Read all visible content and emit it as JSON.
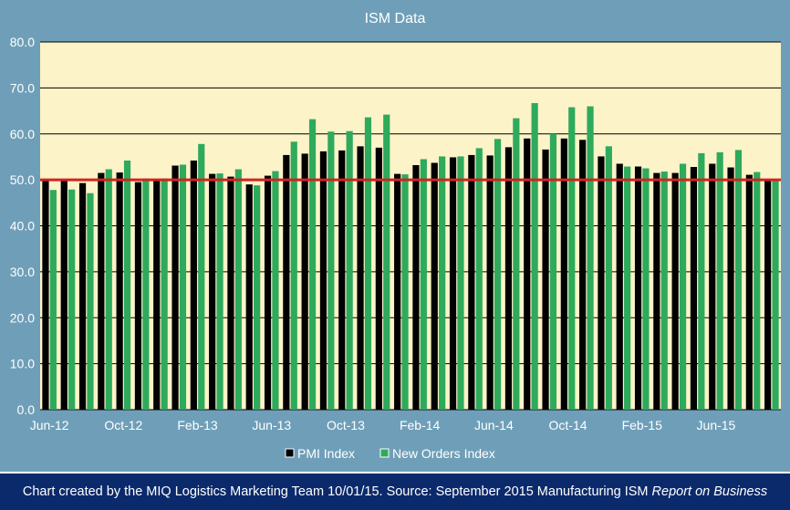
{
  "chart_data": {
    "type": "bar",
    "title": "ISM Data",
    "xlabel": "",
    "ylabel": "",
    "ylim": [
      0,
      80
    ],
    "yticks": [
      "0.0",
      "10.0",
      "20.0",
      "30.0",
      "40.0",
      "50.0",
      "60.0",
      "70.0",
      "80.0"
    ],
    "grid": true,
    "legend_position": "bottom",
    "categories": [
      "Jun-12",
      "Jul-12",
      "Aug-12",
      "Sep-12",
      "Oct-12",
      "Nov-12",
      "Dec-12",
      "Jan-13",
      "Feb-13",
      "Mar-13",
      "Apr-13",
      "May-13",
      "Jun-13",
      "Jul-13",
      "Aug-13",
      "Sep-13",
      "Oct-13",
      "Nov-13",
      "Dec-13",
      "Jan-14",
      "Feb-14",
      "Mar-14",
      "Apr-14",
      "May-14",
      "Jun-14",
      "Jul-14",
      "Aug-14",
      "Sep-14",
      "Oct-14",
      "Nov-14",
      "Dec-14",
      "Jan-15",
      "Feb-15",
      "Mar-15",
      "Apr-15",
      "May-15",
      "Jun-15",
      "Jul-15",
      "Aug-15",
      "Sep-15"
    ],
    "x_tick_labels": [
      {
        "index": 0,
        "label": "Jun-12"
      },
      {
        "index": 4,
        "label": "Oct-12"
      },
      {
        "index": 8,
        "label": "Feb-13"
      },
      {
        "index": 12,
        "label": "Jun-13"
      },
      {
        "index": 16,
        "label": "Oct-13"
      },
      {
        "index": 20,
        "label": "Feb-14"
      },
      {
        "index": 24,
        "label": "Jun-14"
      },
      {
        "index": 28,
        "label": "Oct-14"
      },
      {
        "index": 32,
        "label": "Feb-15"
      },
      {
        "index": 36,
        "label": "Jun-15"
      }
    ],
    "series": [
      {
        "name": "PMI Index",
        "color": "#000000",
        "values": [
          50.0,
          49.8,
          49.3,
          51.5,
          51.6,
          49.5,
          50.0,
          53.1,
          54.2,
          51.3,
          50.7,
          49.0,
          50.9,
          55.4,
          55.7,
          56.2,
          56.4,
          57.3,
          57.0,
          51.3,
          53.2,
          53.7,
          54.9,
          55.4,
          55.3,
          57.1,
          59.0,
          56.6,
          59.0,
          58.7,
          55.1,
          53.5,
          52.9,
          51.5,
          51.5,
          52.8,
          53.5,
          52.7,
          51.1,
          50.2
        ]
      },
      {
        "name": "New Orders Index",
        "color": "#2eaa5c",
        "values": [
          47.8,
          47.9,
          47.1,
          52.3,
          54.2,
          50.3,
          50.3,
          53.3,
          57.8,
          51.4,
          52.3,
          48.8,
          51.9,
          58.3,
          63.2,
          60.5,
          60.6,
          63.6,
          64.2,
          51.2,
          54.5,
          55.1,
          55.1,
          56.9,
          58.9,
          63.4,
          66.7,
          60.0,
          65.8,
          66.0,
          57.3,
          52.9,
          52.5,
          51.8,
          53.5,
          55.8,
          56.0,
          56.5,
          51.7,
          50.1
        ]
      }
    ],
    "reference_line": {
      "value": 50,
      "color": "#d42222"
    }
  },
  "colors": {
    "background": "#6f9fb8",
    "plot_area": "#fdf3c8",
    "footer": "#0b2a6b",
    "text": "#ffffff"
  },
  "footer": {
    "text_prefix": "Chart created by the MIQ Logistics Marketing Team 10/01/15. Source: September 2015 Manufacturing ISM ",
    "text_italic": "Report on Business"
  }
}
